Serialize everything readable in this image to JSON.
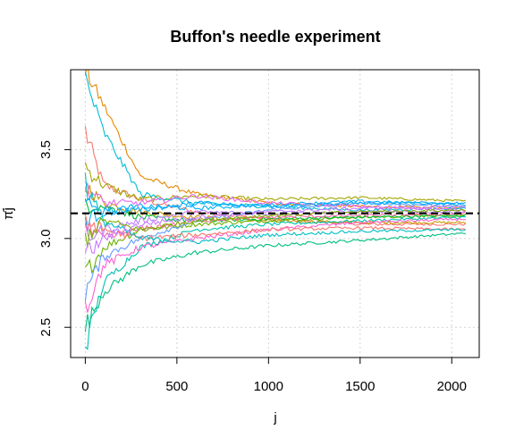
{
  "chart_data": {
    "type": "line",
    "title": "Buffon's needle experiment",
    "xlabel": "j",
    "ylabel": "π̂j",
    "xlim": [
      -80,
      2150
    ],
    "ylim": [
      2.33,
      3.95
    ],
    "x_ticks": [
      0,
      500,
      1000,
      1500,
      2000
    ],
    "x_tick_labels": [
      "0",
      "500",
      "1000",
      "1500",
      "2000"
    ],
    "y_ticks": [
      2.5,
      3.0,
      3.5
    ],
    "y_tick_labels": [
      "2.5",
      "3.0",
      "3.5"
    ],
    "grid": true,
    "reference_line": {
      "value": 3.14159,
      "style": "dashed",
      "color": "#000000"
    },
    "series_count": 20,
    "series": [
      {
        "color": "#F8766D",
        "values": [
          [
            0,
            3.6
          ],
          [
            100,
            3.3
          ],
          [
            300,
            3.22
          ],
          [
            600,
            3.15
          ],
          [
            1000,
            3.11
          ],
          [
            1500,
            3.08
          ],
          [
            2080,
            3.08
          ]
        ]
      },
      {
        "color": "#E58700",
        "values": [
          [
            0,
            3.95
          ],
          [
            100,
            3.75
          ],
          [
            300,
            3.35
          ],
          [
            600,
            3.25
          ],
          [
            1000,
            3.2
          ],
          [
            1500,
            3.18
          ],
          [
            2080,
            3.17
          ]
        ]
      },
      {
        "color": "#C99800",
        "values": [
          [
            0,
            3.3
          ],
          [
            100,
            3.2
          ],
          [
            300,
            3.15
          ],
          [
            600,
            3.12
          ],
          [
            1000,
            3.1
          ],
          [
            1500,
            3.09
          ],
          [
            2080,
            3.09
          ]
        ]
      },
      {
        "color": "#A3A500",
        "values": [
          [
            0,
            3.4
          ],
          [
            100,
            3.3
          ],
          [
            300,
            3.22
          ],
          [
            600,
            3.24
          ],
          [
            1000,
            3.22
          ],
          [
            1500,
            3.23
          ],
          [
            2080,
            3.21
          ]
        ]
      },
      {
        "color": "#6BB100",
        "values": [
          [
            0,
            2.8
          ],
          [
            100,
            2.95
          ],
          [
            300,
            3.05
          ],
          [
            600,
            3.08
          ],
          [
            1000,
            3.1
          ],
          [
            1500,
            3.12
          ],
          [
            2080,
            3.13
          ]
        ]
      },
      {
        "color": "#00BA38",
        "values": [
          [
            0,
            3.2
          ],
          [
            100,
            3.18
          ],
          [
            300,
            3.12
          ],
          [
            600,
            3.1
          ],
          [
            1000,
            3.11
          ],
          [
            1500,
            3.12
          ],
          [
            2080,
            3.13
          ]
        ]
      },
      {
        "color": "#00BF7D",
        "values": [
          [
            0,
            2.5
          ],
          [
            100,
            2.7
          ],
          [
            300,
            2.85
          ],
          [
            600,
            2.92
          ],
          [
            1000,
            2.96
          ],
          [
            1500,
            2.99
          ],
          [
            2080,
            3.03
          ]
        ]
      },
      {
        "color": "#00C0AF",
        "values": [
          [
            0,
            2.4
          ],
          [
            100,
            2.75
          ],
          [
            300,
            2.95
          ],
          [
            600,
            3.05
          ],
          [
            1000,
            3.08
          ],
          [
            1500,
            3.1
          ],
          [
            2080,
            3.12
          ]
        ]
      },
      {
        "color": "#00BCD8",
        "values": [
          [
            0,
            3.9
          ],
          [
            100,
            3.6
          ],
          [
            300,
            3.25
          ],
          [
            600,
            3.2
          ],
          [
            1000,
            3.18
          ],
          [
            1500,
            3.16
          ],
          [
            2080,
            3.17
          ]
        ]
      },
      {
        "color": "#00B0F6",
        "values": [
          [
            0,
            3.1
          ],
          [
            100,
            3.15
          ],
          [
            300,
            3.18
          ],
          [
            600,
            3.17
          ],
          [
            1000,
            3.19
          ],
          [
            1500,
            3.21
          ],
          [
            2080,
            3.19
          ]
        ]
      },
      {
        "color": "#619CFF",
        "values": [
          [
            0,
            2.7
          ],
          [
            100,
            2.9
          ],
          [
            300,
            3.0
          ],
          [
            600,
            3.1
          ],
          [
            1000,
            3.16
          ],
          [
            1500,
            3.2
          ],
          [
            2080,
            3.18
          ]
        ]
      },
      {
        "color": "#B983FF",
        "values": [
          [
            0,
            3.0
          ],
          [
            100,
            3.05
          ],
          [
            300,
            3.1
          ],
          [
            600,
            3.15
          ],
          [
            1000,
            3.14
          ],
          [
            1500,
            3.15
          ],
          [
            2080,
            3.15
          ]
        ]
      },
      {
        "color": "#E76BF3",
        "values": [
          [
            0,
            3.3
          ],
          [
            100,
            3.2
          ],
          [
            300,
            3.2
          ],
          [
            600,
            3.24
          ],
          [
            1000,
            3.2
          ],
          [
            1500,
            3.18
          ],
          [
            2080,
            3.16
          ]
        ]
      },
      {
        "color": "#FD61D1",
        "values": [
          [
            0,
            2.6
          ],
          [
            100,
            2.85
          ],
          [
            300,
            2.95
          ],
          [
            600,
            3.0
          ],
          [
            1000,
            3.05
          ],
          [
            1500,
            3.09
          ],
          [
            2080,
            3.11
          ]
        ]
      },
      {
        "color": "#FF67A4",
        "values": [
          [
            0,
            3.05
          ],
          [
            100,
            3.0
          ],
          [
            300,
            3.05
          ],
          [
            600,
            3.1
          ],
          [
            1000,
            3.12
          ],
          [
            1500,
            3.13
          ],
          [
            2080,
            3.14
          ]
        ]
      },
      {
        "color": "#F8766D",
        "values": [
          [
            0,
            3.1
          ],
          [
            100,
            3.05
          ],
          [
            300,
            3.0
          ],
          [
            600,
            3.02
          ],
          [
            1000,
            3.05
          ],
          [
            1500,
            3.06
          ],
          [
            2080,
            3.05
          ]
        ]
      },
      {
        "color": "#7CAE00",
        "values": [
          [
            0,
            3.0
          ],
          [
            100,
            3.1
          ],
          [
            300,
            3.05
          ],
          [
            600,
            3.1
          ],
          [
            1000,
            3.13
          ],
          [
            1500,
            3.15
          ],
          [
            2080,
            3.16
          ]
        ]
      },
      {
        "color": "#00BFC4",
        "values": [
          [
            0,
            3.3
          ],
          [
            100,
            3.1
          ],
          [
            300,
            3.0
          ],
          [
            600,
            2.98
          ],
          [
            1000,
            3.02
          ],
          [
            1500,
            3.04
          ],
          [
            2080,
            3.05
          ]
        ]
      },
      {
        "color": "#C77CFF",
        "values": [
          [
            0,
            2.9
          ],
          [
            100,
            3.0
          ],
          [
            300,
            3.08
          ],
          [
            600,
            3.12
          ],
          [
            1000,
            3.15
          ],
          [
            1500,
            3.17
          ],
          [
            2080,
            3.18
          ]
        ]
      },
      {
        "color": "#00A9FF",
        "values": [
          [
            0,
            3.2
          ],
          [
            100,
            3.15
          ],
          [
            300,
            3.16
          ],
          [
            600,
            3.2
          ],
          [
            1000,
            3.18
          ],
          [
            1500,
            3.2
          ],
          [
            2080,
            3.2
          ]
        ]
      }
    ]
  }
}
